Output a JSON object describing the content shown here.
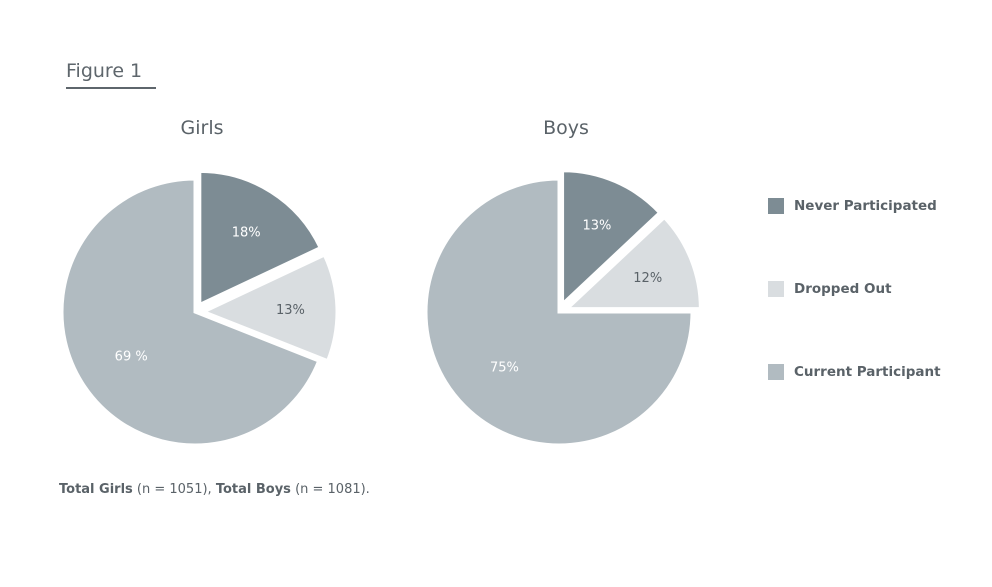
{
  "figure_label": "Figure 1",
  "colors": {
    "never_participated": "#7d8c94",
    "dropped_out": "#d9dde0",
    "current_participant": "#b1bbc1",
    "text": "#5a6268",
    "label_dark": "#ffffff",
    "label_light": "#5a6268"
  },
  "legend": {
    "items": [
      {
        "label": "Never Participated",
        "color": "#7d8c94"
      },
      {
        "label": "Dropped Out",
        "color": "#d9dde0"
      },
      {
        "label": "Current Participant",
        "color": "#b1bbc1"
      }
    ]
  },
  "chart_data": [
    {
      "type": "pie",
      "title": "Girls",
      "categories": [
        "Never Participated",
        "Dropped Out",
        "Current Participant"
      ],
      "values": [
        18,
        13,
        69
      ],
      "labels": [
        "18%",
        "13%",
        "69 %"
      ],
      "exploded": [
        true,
        true,
        false
      ],
      "legend_placement": "right"
    },
    {
      "type": "pie",
      "title": "Boys",
      "categories": [
        "Never Participated",
        "Dropped Out",
        "Current Participant"
      ],
      "values": [
        13,
        12,
        75
      ],
      "labels": [
        "13%",
        "12%",
        "75%"
      ],
      "exploded": [
        true,
        true,
        false
      ],
      "legend_placement": "right"
    }
  ],
  "footnote": {
    "girls_label": "Total Girls",
    "girls_n": "(n = 1051),",
    "boys_label": "Total Boys",
    "boys_n": "(n = 1081)."
  }
}
